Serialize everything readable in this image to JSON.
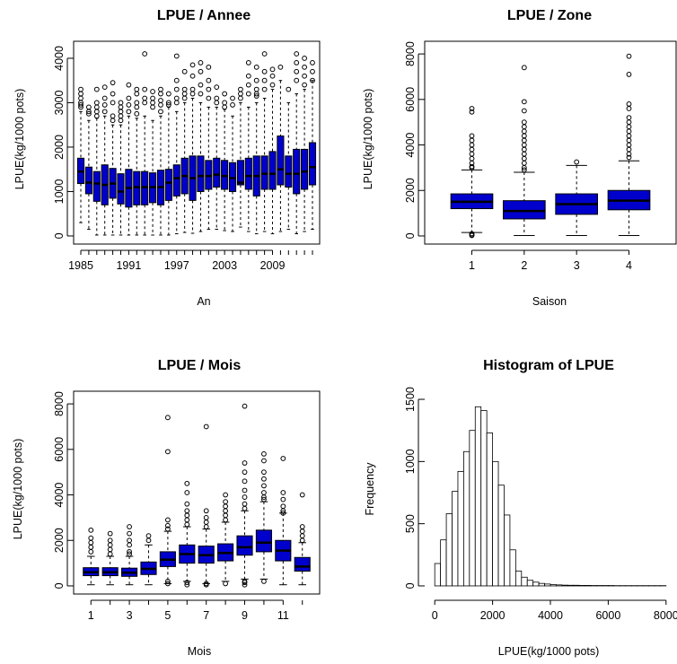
{
  "colors": {
    "box_fill": "#0000cd",
    "outline": "#000000",
    "hist_fill": "#ffffff"
  },
  "chart_data": [
    {
      "id": "annee",
      "type": "boxplot",
      "title": "LPUE / Annee",
      "xlabel": "An",
      "ylabel": "LPUE(kg/1000 pots)",
      "ylim": [
        0,
        4200
      ],
      "yticks": [
        "0",
        "1000",
        "2000",
        "3000",
        "4000"
      ],
      "ytick_values": [
        0,
        1000,
        2000,
        3000,
        4000
      ],
      "xtick_labels": [
        "1985",
        "1991",
        "1997",
        "2003",
        "2009"
      ],
      "xtick_positions": [
        1,
        7,
        13,
        19,
        25
      ],
      "n_groups": 30,
      "boxes": [
        {
          "q1": 1180,
          "med": 1450,
          "q3": 1750,
          "lo": 300,
          "hi": 2800
        },
        {
          "q1": 950,
          "med": 1200,
          "q3": 1550,
          "lo": 150,
          "hi": 2600
        },
        {
          "q1": 780,
          "med": 1180,
          "q3": 1450,
          "lo": 20,
          "hi": 2650
        },
        {
          "q1": 700,
          "med": 1150,
          "q3": 1600,
          "lo": 20,
          "hi": 2700
        },
        {
          "q1": 850,
          "med": 1180,
          "q3": 1520,
          "lo": 20,
          "hi": 2500
        },
        {
          "q1": 720,
          "med": 1000,
          "q3": 1400,
          "lo": 20,
          "hi": 2500
        },
        {
          "q1": 650,
          "med": 1080,
          "q3": 1500,
          "lo": 20,
          "hi": 2700
        },
        {
          "q1": 700,
          "med": 1100,
          "q3": 1450,
          "lo": 20,
          "hi": 2650
        },
        {
          "q1": 700,
          "med": 1100,
          "q3": 1450,
          "lo": 20,
          "hi": 2700
        },
        {
          "q1": 750,
          "med": 1100,
          "q3": 1420,
          "lo": 20,
          "hi": 2600
        },
        {
          "q1": 700,
          "med": 1100,
          "q3": 1480,
          "lo": 20,
          "hi": 2700
        },
        {
          "q1": 800,
          "med": 1200,
          "q3": 1500,
          "lo": 20,
          "hi": 2900
        },
        {
          "q1": 900,
          "med": 1300,
          "q3": 1600,
          "lo": 50,
          "hi": 2800
        },
        {
          "q1": 950,
          "med": 1350,
          "q3": 1750,
          "lo": 80,
          "hi": 3000
        },
        {
          "q1": 800,
          "med": 1300,
          "q3": 1800,
          "lo": 60,
          "hi": 3100
        },
        {
          "q1": 1000,
          "med": 1350,
          "q3": 1800,
          "lo": 100,
          "hi": 3000
        },
        {
          "q1": 1050,
          "med": 1350,
          "q3": 1700,
          "lo": 150,
          "hi": 2900
        },
        {
          "q1": 1100,
          "med": 1380,
          "q3": 1750,
          "lo": 150,
          "hi": 2900
        },
        {
          "q1": 1050,
          "med": 1350,
          "q3": 1700,
          "lo": 120,
          "hi": 2850
        },
        {
          "q1": 1000,
          "med": 1300,
          "q3": 1650,
          "lo": 100,
          "hi": 2700
        },
        {
          "q1": 1150,
          "med": 1200,
          "q3": 1700,
          "lo": 200,
          "hi": 3000
        },
        {
          "q1": 1050,
          "med": 1350,
          "q3": 1750,
          "lo": 100,
          "hi": 2900
        },
        {
          "q1": 900,
          "med": 1350,
          "q3": 1800,
          "lo": 50,
          "hi": 3000
        },
        {
          "q1": 1050,
          "med": 1400,
          "q3": 1800,
          "lo": 100,
          "hi": 3100
        },
        {
          "q1": 1050,
          "med": 1400,
          "q3": 1900,
          "lo": 50,
          "hi": 3300
        },
        {
          "q1": 1150,
          "med": 1500,
          "q3": 2250,
          "lo": 100,
          "hi": 3500
        },
        {
          "q1": 1100,
          "med": 1400,
          "q3": 1800,
          "lo": 150,
          "hi": 3000
        },
        {
          "q1": 950,
          "med": 1400,
          "q3": 1950,
          "lo": 50,
          "hi": 3200
        },
        {
          "q1": 1050,
          "med": 1450,
          "q3": 1950,
          "lo": 100,
          "hi": 3300
        },
        {
          "q1": 1150,
          "med": 1550,
          "q3": 2100,
          "lo": 150,
          "hi": 3500
        }
      ],
      "outliers": [
        [
          3300,
          3200,
          3100,
          3000,
          2950,
          2900
        ],
        [
          2900,
          2800,
          2750
        ],
        [
          3300,
          3000,
          2900,
          2800,
          2700
        ],
        [
          3350,
          3100,
          2950,
          2800
        ],
        [
          3450,
          3200,
          3000,
          2700,
          2600
        ],
        [
          3000,
          2900,
          2800,
          2700,
          2600
        ],
        [
          3400,
          3100,
          2950,
          2800
        ],
        [
          3300,
          3200,
          3000,
          2900,
          2750
        ],
        [
          4100,
          3300,
          3100,
          3000
        ],
        [
          3250,
          3100,
          3000,
          2900
        ],
        [
          3300,
          3200,
          3050,
          2950,
          2800
        ],
        [
          3200,
          3000,
          2950
        ],
        [
          4050,
          3500,
          3300,
          3100,
          3000
        ],
        [
          3700,
          3300,
          3200,
          3100
        ],
        [
          3850,
          3600,
          3300,
          3200
        ],
        [
          3900,
          3700,
          3400,
          3200
        ],
        [
          3800,
          3500,
          3300,
          3100
        ],
        [
          3350,
          3100,
          3000
        ],
        [
          3200,
          3000,
          2900
        ],
        [
          3100,
          2950
        ],
        [
          3300,
          3200,
          3100
        ],
        [
          3900,
          3600,
          3400,
          3200
        ],
        [
          3800,
          3500,
          3300,
          3200,
          3150
        ],
        [
          4100,
          3700,
          3500,
          3300
        ],
        [
          3750,
          3600,
          3400
        ],
        [
          3800
        ],
        [
          3300
        ],
        [
          4100,
          3900,
          3700,
          3500
        ],
        [
          4000,
          3800,
          3600,
          3400
        ],
        [
          3900,
          3700,
          3500
        ]
      ]
    },
    {
      "id": "zone",
      "type": "boxplot",
      "title": "LPUE / Zone",
      "xlabel": "Saison",
      "ylabel": "LPUE(kg/1000 pots)",
      "ylim": [
        0,
        8200
      ],
      "yticks": [
        "0",
        "2000",
        "4000",
        "6000",
        "8000"
      ],
      "ytick_values": [
        0,
        2000,
        4000,
        6000,
        8000
      ],
      "xtick_labels": [
        "1",
        "2",
        "3",
        "4"
      ],
      "xtick_positions": [
        1,
        2,
        3,
        4
      ],
      "n_groups": 4,
      "boxes": [
        {
          "q1": 1200,
          "med": 1500,
          "q3": 1850,
          "lo": 150,
          "hi": 2900
        },
        {
          "q1": 750,
          "med": 1100,
          "q3": 1550,
          "lo": 20,
          "hi": 2800
        },
        {
          "q1": 950,
          "med": 1400,
          "q3": 1850,
          "lo": 20,
          "hi": 3100
        },
        {
          "q1": 1150,
          "med": 1550,
          "q3": 2000,
          "lo": 20,
          "hi": 3300
        }
      ],
      "outliers": [
        [
          5600,
          5450,
          4400,
          4200,
          4000,
          3800,
          3600,
          3400,
          3200,
          3050,
          3000,
          100,
          50,
          20
        ],
        [
          7400,
          5900,
          5500,
          5000,
          4800,
          4600,
          4400,
          4200,
          4000,
          3800,
          3600,
          3400,
          3200,
          3000,
          2900
        ],
        [
          3250
        ],
        [
          7900,
          7100,
          5800,
          5600,
          5200,
          5000,
          4800,
          4600,
          4400,
          4200,
          4000,
          3800,
          3600,
          3450
        ]
      ]
    },
    {
      "id": "mois",
      "type": "boxplot",
      "title": "LPUE / Mois",
      "xlabel": "Mois",
      "ylabel": "LPUE(kg/1000 pots)",
      "ylim": [
        0,
        8200
      ],
      "yticks": [
        "0",
        "2000",
        "4000",
        "6000",
        "8000"
      ],
      "ytick_values": [
        0,
        2000,
        4000,
        6000,
        8000
      ],
      "xtick_labels": [
        "1",
        "3",
        "5",
        "7",
        "9",
        "11"
      ],
      "xtick_positions": [
        1,
        3,
        5,
        7,
        9,
        11
      ],
      "n_groups": 12,
      "boxes": [
        {
          "q1": 450,
          "med": 600,
          "q3": 800,
          "lo": 50,
          "hi": 1300
        },
        {
          "q1": 450,
          "med": 600,
          "q3": 800,
          "lo": 50,
          "hi": 1300
        },
        {
          "q1": 420,
          "med": 580,
          "q3": 780,
          "lo": 50,
          "hi": 1300
        },
        {
          "q1": 500,
          "med": 750,
          "q3": 1050,
          "lo": 50,
          "hi": 1800
        },
        {
          "q1": 850,
          "med": 1150,
          "q3": 1500,
          "lo": 100,
          "hi": 2400
        },
        {
          "q1": 1000,
          "med": 1400,
          "q3": 1800,
          "lo": 200,
          "hi": 2600
        },
        {
          "q1": 1000,
          "med": 1350,
          "q3": 1750,
          "lo": 100,
          "hi": 2500
        },
        {
          "q1": 1100,
          "med": 1450,
          "q3": 1850,
          "lo": 200,
          "hi": 2800
        },
        {
          "q1": 1350,
          "med": 1700,
          "q3": 2200,
          "lo": 300,
          "hi": 3300
        },
        {
          "q1": 1500,
          "med": 1900,
          "q3": 2450,
          "lo": 300,
          "hi": 3700
        },
        {
          "q1": 1100,
          "med": 1550,
          "q3": 2000,
          "lo": 50,
          "hi": 3200
        },
        {
          "q1": 650,
          "med": 850,
          "q3": 1250,
          "lo": 50,
          "hi": 1900
        }
      ],
      "outliers": [
        [
          2450,
          2100,
          1900,
          1700,
          1500
        ],
        [
          2300,
          2000,
          1800,
          1600,
          1400
        ],
        [
          2600,
          2300,
          2000,
          1800,
          1500,
          1400
        ],
        [
          2200,
          2000
        ],
        [
          7400,
          5900,
          2900,
          2650,
          2500,
          200,
          100
        ],
        [
          4500,
          4100,
          3600,
          3300,
          3100,
          2900,
          2700,
          150,
          50
        ],
        [
          7000,
          3300,
          3000,
          2800,
          2600,
          100,
          50
        ],
        [
          4000,
          3700,
          3500,
          3300,
          3100,
          2900,
          100
        ],
        [
          7900,
          5400,
          5000,
          4600,
          4200,
          3900,
          3600,
          3400,
          200,
          150,
          50
        ],
        [
          5800,
          5500,
          5000,
          4700,
          4400,
          4100,
          3900,
          3800,
          200
        ],
        [
          5600,
          4100,
          3800,
          3500,
          3300,
          3200
        ],
        [
          4000,
          2600,
          2400,
          2200,
          2000
        ]
      ]
    },
    {
      "id": "hist",
      "type": "histogram",
      "title": "Histogram of LPUE",
      "xlabel": "LPUE(kg/1000 pots)",
      "ylabel": "Frequency",
      "xlim": [
        0,
        8000
      ],
      "ylim": [
        0,
        1500
      ],
      "xticks": [
        "0",
        "2000",
        "4000",
        "6000",
        "8000"
      ],
      "xtick_values": [
        0,
        2000,
        4000,
        6000,
        8000
      ],
      "yticks": [
        "0",
        "500",
        "1000",
        "1500"
      ],
      "ytick_values": [
        0,
        500,
        1000,
        1500
      ],
      "bin_width": 200,
      "counts": [
        180,
        370,
        580,
        760,
        920,
        1080,
        1250,
        1440,
        1410,
        1230,
        1000,
        810,
        570,
        290,
        120,
        70,
        45,
        30,
        20,
        15,
        10,
        8,
        6,
        5,
        5,
        4,
        4,
        3,
        3,
        3,
        3,
        2,
        2,
        2,
        2,
        2,
        2,
        2,
        2,
        2
      ]
    }
  ]
}
